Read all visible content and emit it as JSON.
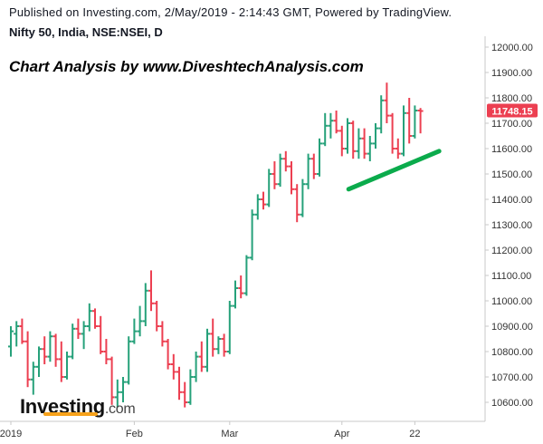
{
  "header": {
    "published": "Published on Investing.com, 2/May/2019 - 2:14:43 GMT, Powered by TradingView.",
    "instrument": "Nifty 50, India, NSE:NSEI, D"
  },
  "watermark_text": "Chart Analysis by www.DiveshtechAnalysis.com",
  "logo": {
    "name": "Investing",
    "suffix": ".com"
  },
  "colors": {
    "up": "#26a17a",
    "down": "#ec3f51",
    "trendline": "#0bab4c",
    "price_tag": "#ec3f51",
    "axis": "#c9c9c9",
    "logo_accent": "#f7a21b"
  },
  "chart_data": {
    "type": "ohlc",
    "title": "Nifty 50, India, NSE:NSEI, D",
    "y_axis": {
      "position": "right",
      "ylim": [
        10530,
        12020
      ],
      "ticks": [
        "12000.00",
        "11900.00",
        "11800.00",
        "11700.00",
        "11600.00",
        "11500.00",
        "11400.00",
        "11300.00",
        "11200.00",
        "11100.00",
        "11000.00",
        "10900.00",
        "10800.00",
        "10700.00",
        "10600.00"
      ]
    },
    "x_axis": {
      "labels": [
        {
          "text": "2019",
          "index": 0
        },
        {
          "text": "Feb",
          "index": 22
        },
        {
          "text": "Mar",
          "index": 39
        },
        {
          "text": "Apr",
          "index": 59
        },
        {
          "text": "22",
          "index": 72
        }
      ]
    },
    "last_price": "11748.15",
    "bars": [
      {
        "o": 10820,
        "h": 10900,
        "l": 10780,
        "c": 10880
      },
      {
        "o": 10870,
        "h": 10920,
        "l": 10820,
        "c": 10900
      },
      {
        "o": 10900,
        "h": 10930,
        "l": 10830,
        "c": 10840
      },
      {
        "o": 10840,
        "h": 10880,
        "l": 10660,
        "c": 10690
      },
      {
        "o": 10690,
        "h": 10760,
        "l": 10630,
        "c": 10740
      },
      {
        "o": 10740,
        "h": 10820,
        "l": 10700,
        "c": 10810
      },
      {
        "o": 10810,
        "h": 10860,
        "l": 10750,
        "c": 10780
      },
      {
        "o": 10780,
        "h": 10880,
        "l": 10760,
        "c": 10860
      },
      {
        "o": 10860,
        "h": 10870,
        "l": 10740,
        "c": 10770
      },
      {
        "o": 10770,
        "h": 10840,
        "l": 10680,
        "c": 10700
      },
      {
        "o": 10700,
        "h": 10800,
        "l": 10690,
        "c": 10780
      },
      {
        "o": 10780,
        "h": 10910,
        "l": 10770,
        "c": 10890
      },
      {
        "o": 10890,
        "h": 10930,
        "l": 10850,
        "c": 10870
      },
      {
        "o": 10870,
        "h": 10920,
        "l": 10810,
        "c": 10900
      },
      {
        "o": 10900,
        "h": 10990,
        "l": 10880,
        "c": 10960
      },
      {
        "o": 10960,
        "h": 10970,
        "l": 10890,
        "c": 10900
      },
      {
        "o": 10900,
        "h": 10940,
        "l": 10790,
        "c": 10800
      },
      {
        "o": 10800,
        "h": 10850,
        "l": 10750,
        "c": 10770
      },
      {
        "o": 10770,
        "h": 10780,
        "l": 10590,
        "c": 10620
      },
      {
        "o": 10620,
        "h": 10690,
        "l": 10580,
        "c": 10640
      },
      {
        "o": 10640,
        "h": 10700,
        "l": 10600,
        "c": 10680
      },
      {
        "o": 10680,
        "h": 10860,
        "l": 10670,
        "c": 10840
      },
      {
        "o": 10840,
        "h": 10930,
        "l": 10830,
        "c": 10880
      },
      {
        "o": 10880,
        "h": 10980,
        "l": 10860,
        "c": 10920
      },
      {
        "o": 10920,
        "h": 11070,
        "l": 10900,
        "c": 11040
      },
      {
        "o": 11040,
        "h": 11120,
        "l": 10960,
        "c": 10990
      },
      {
        "o": 10990,
        "h": 11000,
        "l": 10880,
        "c": 10900
      },
      {
        "o": 10900,
        "h": 10920,
        "l": 10820,
        "c": 10840
      },
      {
        "o": 10840,
        "h": 10850,
        "l": 10730,
        "c": 10750
      },
      {
        "o": 10750,
        "h": 10790,
        "l": 10690,
        "c": 10720
      },
      {
        "o": 10720,
        "h": 10740,
        "l": 10610,
        "c": 10640
      },
      {
        "o": 10640,
        "h": 10680,
        "l": 10580,
        "c": 10600
      },
      {
        "o": 10600,
        "h": 10730,
        "l": 10590,
        "c": 10700
      },
      {
        "o": 10700,
        "h": 10800,
        "l": 10680,
        "c": 10780
      },
      {
        "o": 10780,
        "h": 10840,
        "l": 10720,
        "c": 10740
      },
      {
        "o": 10740,
        "h": 10890,
        "l": 10720,
        "c": 10870
      },
      {
        "o": 10870,
        "h": 10930,
        "l": 10780,
        "c": 10810
      },
      {
        "o": 10810,
        "h": 10860,
        "l": 10790,
        "c": 10850
      },
      {
        "o": 10850,
        "h": 10870,
        "l": 10780,
        "c": 10800
      },
      {
        "o": 10800,
        "h": 11000,
        "l": 10790,
        "c": 10980
      },
      {
        "o": 10980,
        "h": 11080,
        "l": 10970,
        "c": 11050
      },
      {
        "o": 11050,
        "h": 11100,
        "l": 11010,
        "c": 11030
      },
      {
        "o": 11030,
        "h": 11180,
        "l": 11020,
        "c": 11170
      },
      {
        "o": 11170,
        "h": 11360,
        "l": 11160,
        "c": 11340
      },
      {
        "o": 11340,
        "h": 11420,
        "l": 11320,
        "c": 11400
      },
      {
        "o": 11400,
        "h": 11430,
        "l": 11360,
        "c": 11380
      },
      {
        "o": 11380,
        "h": 11520,
        "l": 11370,
        "c": 11500
      },
      {
        "o": 11500,
        "h": 11550,
        "l": 11440,
        "c": 11460
      },
      {
        "o": 11460,
        "h": 11580,
        "l": 11450,
        "c": 11560
      },
      {
        "o": 11560,
        "h": 11590,
        "l": 11510,
        "c": 11530
      },
      {
        "o": 11530,
        "h": 11550,
        "l": 11420,
        "c": 11440
      },
      {
        "o": 11440,
        "h": 11460,
        "l": 11310,
        "c": 11340
      },
      {
        "o": 11340,
        "h": 11480,
        "l": 11330,
        "c": 11460
      },
      {
        "o": 11460,
        "h": 11580,
        "l": 11440,
        "c": 11560
      },
      {
        "o": 11560,
        "h": 11580,
        "l": 11480,
        "c": 11500
      },
      {
        "o": 11500,
        "h": 11640,
        "l": 11490,
        "c": 11620
      },
      {
        "o": 11620,
        "h": 11740,
        "l": 11610,
        "c": 11690
      },
      {
        "o": 11690,
        "h": 11740,
        "l": 11640,
        "c": 11710
      },
      {
        "o": 11710,
        "h": 11750,
        "l": 11660,
        "c": 11670
      },
      {
        "o": 11670,
        "h": 11690,
        "l": 11570,
        "c": 11600
      },
      {
        "o": 11600,
        "h": 11720,
        "l": 11580,
        "c": 11700
      },
      {
        "o": 11700,
        "h": 11710,
        "l": 11560,
        "c": 11590
      },
      {
        "o": 11590,
        "h": 11680,
        "l": 11560,
        "c": 11640
      },
      {
        "o": 11640,
        "h": 11680,
        "l": 11560,
        "c": 11580
      },
      {
        "o": 11580,
        "h": 11650,
        "l": 11550,
        "c": 11620
      },
      {
        "o": 11620,
        "h": 11700,
        "l": 11600,
        "c": 11680
      },
      {
        "o": 11680,
        "h": 11810,
        "l": 11660,
        "c": 11790
      },
      {
        "o": 11790,
        "h": 11860,
        "l": 11700,
        "c": 11730
      },
      {
        "o": 11730,
        "h": 11740,
        "l": 11580,
        "c": 11600
      },
      {
        "o": 11600,
        "h": 11640,
        "l": 11560,
        "c": 11580
      },
      {
        "o": 11580,
        "h": 11770,
        "l": 11570,
        "c": 11740
      },
      {
        "o": 11740,
        "h": 11800,
        "l": 11620,
        "c": 11650
      },
      {
        "o": 11650,
        "h": 11770,
        "l": 11640,
        "c": 11750
      },
      {
        "o": 11750,
        "h": 11760,
        "l": 11660,
        "c": 11748.15
      }
    ],
    "trendline": {
      "from": {
        "index": 61,
        "value": 11440
      },
      "to": {
        "index": 76,
        "value": 11590
      }
    }
  }
}
